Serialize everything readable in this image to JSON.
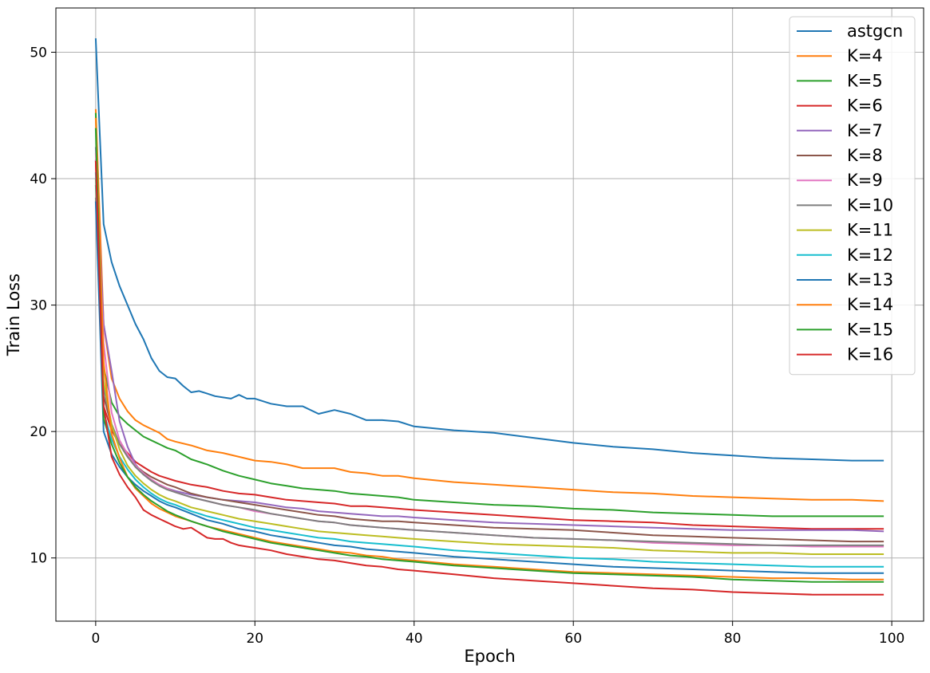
{
  "chart_data": {
    "type": "line",
    "title": "",
    "xlabel": "Epoch",
    "ylabel": "Train Loss",
    "xlim": [
      -5,
      104
    ],
    "ylim": [
      5,
      53.5
    ],
    "xticks": [
      0,
      20,
      40,
      60,
      80,
      100
    ],
    "yticks": [
      10,
      20,
      30,
      40,
      50
    ],
    "grid": true,
    "legend_position": "top-right",
    "series": [
      {
        "name": "astgcn",
        "color": "#1f77b4",
        "x": [
          0,
          1,
          2,
          3,
          4,
          5,
          6,
          7,
          8,
          9,
          10,
          11,
          12,
          13,
          14,
          15,
          16,
          17,
          18,
          19,
          20,
          22,
          24,
          26,
          28,
          30,
          32,
          34,
          36,
          38,
          40,
          45,
          50,
          55,
          60,
          65,
          70,
          75,
          80,
          85,
          90,
          95,
          99
        ],
        "y": [
          51.1,
          36.4,
          33.4,
          31.5,
          30.0,
          28.5,
          27.3,
          25.8,
          24.8,
          24.3,
          24.2,
          23.6,
          23.1,
          23.2,
          23.0,
          22.8,
          22.7,
          22.6,
          22.9,
          22.6,
          22.6,
          22.2,
          22.0,
          22.0,
          21.4,
          21.7,
          21.4,
          20.9,
          20.9,
          20.8,
          20.4,
          20.1,
          19.9,
          19.5,
          19.1,
          18.8,
          18.6,
          18.3,
          18.1,
          17.9,
          17.8,
          17.7,
          17.7
        ]
      },
      {
        "name": "K=4",
        "color": "#ff7f0e",
        "x": [
          0,
          1,
          2,
          3,
          4,
          5,
          6,
          7,
          8,
          9,
          10,
          12,
          14,
          16,
          18,
          20,
          22,
          24,
          26,
          28,
          30,
          32,
          34,
          36,
          38,
          40,
          45,
          50,
          55,
          60,
          65,
          70,
          75,
          80,
          85,
          90,
          95,
          99
        ],
        "y": [
          45.5,
          28.5,
          24.2,
          22.6,
          21.6,
          20.9,
          20.5,
          20.2,
          19.9,
          19.4,
          19.2,
          18.9,
          18.5,
          18.3,
          18.0,
          17.7,
          17.6,
          17.4,
          17.1,
          17.1,
          17.1,
          16.8,
          16.7,
          16.5,
          16.5,
          16.3,
          16.0,
          15.8,
          15.6,
          15.4,
          15.2,
          15.1,
          14.9,
          14.8,
          14.7,
          14.6,
          14.6,
          14.5
        ]
      },
      {
        "name": "K=5",
        "color": "#2ca02c",
        "x": [
          0,
          1,
          2,
          3,
          4,
          5,
          6,
          7,
          8,
          9,
          10,
          12,
          14,
          16,
          18,
          20,
          22,
          24,
          26,
          28,
          30,
          32,
          34,
          36,
          38,
          40,
          45,
          50,
          55,
          60,
          65,
          70,
          75,
          80,
          85,
          90,
          95,
          99
        ],
        "y": [
          45.2,
          25.1,
          22.3,
          21.2,
          20.6,
          20.1,
          19.6,
          19.3,
          19.0,
          18.7,
          18.5,
          17.8,
          17.4,
          16.9,
          16.5,
          16.2,
          15.9,
          15.7,
          15.5,
          15.4,
          15.3,
          15.1,
          15.0,
          14.9,
          14.8,
          14.6,
          14.4,
          14.2,
          14.1,
          13.9,
          13.8,
          13.6,
          13.5,
          13.4,
          13.3,
          13.3,
          13.3,
          13.3
        ]
      },
      {
        "name": "K=6",
        "color": "#d62728",
        "x": [
          0,
          1,
          2,
          3,
          4,
          5,
          6,
          7,
          8,
          9,
          10,
          12,
          14,
          16,
          18,
          20,
          22,
          24,
          26,
          28,
          30,
          32,
          34,
          36,
          38,
          40,
          45,
          50,
          55,
          60,
          65,
          70,
          75,
          80,
          85,
          90,
          95,
          99
        ],
        "y": [
          41.5,
          22.0,
          20.1,
          19.0,
          18.3,
          17.6,
          17.2,
          16.8,
          16.5,
          16.3,
          16.1,
          15.8,
          15.6,
          15.3,
          15.1,
          15.0,
          14.8,
          14.6,
          14.5,
          14.4,
          14.3,
          14.1,
          14.1,
          14.0,
          13.9,
          13.8,
          13.6,
          13.4,
          13.2,
          13.0,
          12.9,
          12.8,
          12.6,
          12.5,
          12.4,
          12.3,
          12.3,
          12.3
        ]
      },
      {
        "name": "K=7",
        "color": "#9467bd",
        "x": [
          0,
          1,
          2,
          3,
          4,
          5,
          6,
          7,
          8,
          9,
          10,
          12,
          14,
          16,
          18,
          20,
          22,
          24,
          26,
          28,
          30,
          32,
          34,
          36,
          38,
          40,
          45,
          50,
          55,
          60,
          65,
          70,
          75,
          80,
          85,
          90,
          95,
          99
        ],
        "y": [
          42.5,
          28.5,
          24.8,
          20.8,
          18.8,
          17.4,
          16.6,
          16.1,
          15.8,
          15.5,
          15.3,
          15.0,
          14.8,
          14.6,
          14.5,
          14.4,
          14.2,
          14.0,
          13.9,
          13.7,
          13.6,
          13.5,
          13.4,
          13.3,
          13.3,
          13.2,
          13.0,
          12.8,
          12.7,
          12.6,
          12.5,
          12.4,
          12.3,
          12.2,
          12.2,
          12.2,
          12.2,
          12.1
        ]
      },
      {
        "name": "K=8",
        "color": "#8c564b",
        "x": [
          0,
          1,
          2,
          3,
          4,
          5,
          6,
          7,
          8,
          9,
          10,
          12,
          14,
          16,
          18,
          20,
          22,
          24,
          26,
          28,
          30,
          32,
          34,
          36,
          38,
          40,
          45,
          50,
          55,
          60,
          65,
          70,
          75,
          80,
          85,
          90,
          95,
          99
        ],
        "y": [
          39.5,
          22.8,
          20.4,
          19.0,
          18.0,
          17.3,
          16.8,
          16.4,
          16.1,
          15.8,
          15.6,
          15.1,
          14.8,
          14.6,
          14.4,
          14.2,
          14.0,
          13.8,
          13.6,
          13.4,
          13.3,
          13.1,
          13.0,
          12.9,
          12.9,
          12.8,
          12.6,
          12.4,
          12.3,
          12.2,
          12.0,
          11.8,
          11.7,
          11.6,
          11.5,
          11.4,
          11.3,
          11.3
        ]
      },
      {
        "name": "K=9",
        "color": "#e377c2",
        "x": [
          0,
          1,
          2,
          3,
          4,
          5,
          6,
          7,
          8,
          9,
          10,
          12,
          14,
          16,
          18,
          20,
          22,
          24,
          26,
          28,
          30,
          32,
          34,
          36,
          38,
          40,
          45,
          50,
          55,
          60,
          65,
          70,
          75,
          80,
          85,
          90,
          95,
          99
        ],
        "y": [
          42.0,
          27.0,
          21.5,
          19.3,
          18.2,
          17.3,
          16.7,
          16.2,
          15.8,
          15.5,
          15.2,
          14.8,
          14.5,
          14.2,
          14.0,
          13.7,
          13.5,
          13.3,
          13.1,
          12.9,
          12.8,
          12.6,
          12.5,
          12.4,
          12.3,
          12.2,
          12.0,
          11.8,
          11.6,
          11.5,
          11.4,
          11.2,
          11.1,
          11.0,
          11.0,
          10.9,
          10.9,
          10.9
        ]
      },
      {
        "name": "K=10",
        "color": "#7f7f7f",
        "x": [
          0,
          1,
          2,
          3,
          4,
          5,
          6,
          7,
          8,
          9,
          10,
          12,
          14,
          16,
          18,
          20,
          22,
          24,
          26,
          28,
          30,
          32,
          34,
          36,
          38,
          40,
          45,
          50,
          55,
          60,
          65,
          70,
          75,
          80,
          85,
          90,
          95,
          99
        ],
        "y": [
          38.5,
          23.5,
          20.6,
          19.0,
          18.0,
          17.2,
          16.6,
          16.1,
          15.7,
          15.4,
          15.2,
          14.8,
          14.5,
          14.2,
          14.0,
          13.8,
          13.5,
          13.3,
          13.1,
          12.9,
          12.8,
          12.6,
          12.5,
          12.4,
          12.3,
          12.2,
          12.0,
          11.8,
          11.6,
          11.5,
          11.4,
          11.3,
          11.2,
          11.1,
          11.0,
          11.0,
          11.0,
          11.0
        ]
      },
      {
        "name": "K=11",
        "color": "#bcbd22",
        "x": [
          0,
          1,
          2,
          3,
          4,
          5,
          6,
          7,
          8,
          9,
          10,
          12,
          14,
          16,
          18,
          20,
          22,
          24,
          26,
          28,
          30,
          32,
          34,
          36,
          38,
          40,
          45,
          50,
          55,
          60,
          65,
          70,
          75,
          80,
          85,
          90,
          95,
          99
        ],
        "y": [
          40.0,
          24.0,
          20.5,
          18.6,
          17.3,
          16.5,
          15.9,
          15.4,
          15.0,
          14.7,
          14.5,
          14.0,
          13.7,
          13.4,
          13.1,
          12.9,
          12.7,
          12.5,
          12.3,
          12.1,
          12.0,
          11.9,
          11.8,
          11.7,
          11.6,
          11.5,
          11.3,
          11.1,
          11.0,
          10.9,
          10.8,
          10.6,
          10.5,
          10.4,
          10.4,
          10.3,
          10.3,
          10.3
        ]
      },
      {
        "name": "K=12",
        "color": "#17becf",
        "x": [
          0,
          1,
          2,
          3,
          4,
          5,
          6,
          7,
          8,
          9,
          10,
          12,
          14,
          16,
          18,
          20,
          22,
          24,
          26,
          28,
          30,
          32,
          34,
          36,
          38,
          40,
          45,
          50,
          55,
          60,
          65,
          70,
          75,
          80,
          85,
          90,
          95,
          99
        ],
        "y": [
          40.5,
          21.5,
          19.4,
          18.0,
          17.0,
          16.2,
          15.6,
          15.1,
          14.7,
          14.4,
          14.2,
          13.7,
          13.3,
          13.0,
          12.7,
          12.4,
          12.2,
          12.0,
          11.8,
          11.6,
          11.5,
          11.3,
          11.2,
          11.1,
          11.0,
          10.9,
          10.6,
          10.4,
          10.2,
          10.0,
          9.9,
          9.7,
          9.6,
          9.5,
          9.4,
          9.3,
          9.3,
          9.3
        ]
      },
      {
        "name": "K=13",
        "color": "#1f77b4",
        "x": [
          0,
          1,
          2,
          3,
          4,
          5,
          6,
          7,
          8,
          9,
          10,
          12,
          14,
          16,
          18,
          20,
          22,
          24,
          26,
          28,
          30,
          32,
          34,
          36,
          38,
          40,
          45,
          50,
          55,
          60,
          65,
          70,
          75,
          80,
          85,
          90,
          95,
          99
        ],
        "y": [
          38.2,
          20.0,
          18.2,
          17.2,
          16.4,
          15.8,
          15.3,
          14.9,
          14.5,
          14.2,
          14.0,
          13.5,
          13.0,
          12.7,
          12.3,
          12.1,
          11.8,
          11.6,
          11.4,
          11.2,
          11.0,
          10.9,
          10.7,
          10.6,
          10.5,
          10.4,
          10.1,
          9.9,
          9.7,
          9.5,
          9.3,
          9.2,
          9.1,
          9.0,
          8.9,
          8.8,
          8.8,
          8.8
        ]
      },
      {
        "name": "K=14",
        "color": "#ff7f0e",
        "x": [
          0,
          1,
          2,
          3,
          4,
          5,
          6,
          7,
          8,
          9,
          10,
          12,
          14,
          16,
          18,
          20,
          22,
          24,
          26,
          28,
          30,
          32,
          34,
          36,
          38,
          40,
          45,
          50,
          55,
          60,
          65,
          70,
          75,
          80,
          85,
          90,
          95,
          99
        ],
        "y": [
          44.8,
          25.5,
          19.8,
          17.9,
          16.4,
          15.5,
          14.9,
          14.3,
          13.9,
          13.6,
          13.3,
          12.9,
          12.5,
          12.2,
          11.9,
          11.6,
          11.3,
          11.1,
          10.9,
          10.7,
          10.5,
          10.4,
          10.2,
          10.1,
          9.9,
          9.8,
          9.5,
          9.3,
          9.1,
          8.9,
          8.8,
          8.7,
          8.6,
          8.5,
          8.4,
          8.4,
          8.3,
          8.3
        ]
      },
      {
        "name": "K=15",
        "color": "#2ca02c",
        "x": [
          0,
          1,
          2,
          3,
          4,
          5,
          6,
          7,
          8,
          9,
          10,
          12,
          14,
          16,
          18,
          20,
          22,
          24,
          26,
          28,
          30,
          32,
          34,
          36,
          38,
          40,
          45,
          50,
          55,
          60,
          65,
          70,
          75,
          80,
          85,
          90,
          95,
          99
        ],
        "y": [
          44.0,
          21.0,
          19.0,
          17.5,
          16.4,
          15.6,
          15.0,
          14.5,
          14.1,
          13.7,
          13.4,
          12.9,
          12.5,
          12.1,
          11.8,
          11.5,
          11.2,
          11.0,
          10.8,
          10.6,
          10.4,
          10.2,
          10.1,
          9.9,
          9.8,
          9.7,
          9.4,
          9.2,
          9.0,
          8.8,
          8.7,
          8.6,
          8.5,
          8.3,
          8.2,
          8.1,
          8.1,
          8.1
        ]
      },
      {
        "name": "K=16",
        "color": "#d62728",
        "x": [
          0,
          1,
          2,
          3,
          4,
          5,
          6,
          7,
          8,
          9,
          10,
          11,
          12,
          13,
          14,
          15,
          16,
          17,
          18,
          19,
          20,
          22,
          24,
          26,
          28,
          30,
          32,
          34,
          36,
          38,
          40,
          45,
          50,
          55,
          60,
          65,
          70,
          75,
          80,
          85,
          90,
          95,
          99
        ],
        "y": [
          41.4,
          22.0,
          18.0,
          16.6,
          15.6,
          14.8,
          13.8,
          13.4,
          13.1,
          12.8,
          12.5,
          12.3,
          12.4,
          12.0,
          11.6,
          11.5,
          11.5,
          11.2,
          11.0,
          10.9,
          10.8,
          10.6,
          10.3,
          10.1,
          9.9,
          9.8,
          9.6,
          9.4,
          9.3,
          9.1,
          9.0,
          8.7,
          8.4,
          8.2,
          8.0,
          7.8,
          7.6,
          7.5,
          7.3,
          7.2,
          7.1,
          7.1,
          7.1
        ]
      }
    ]
  }
}
